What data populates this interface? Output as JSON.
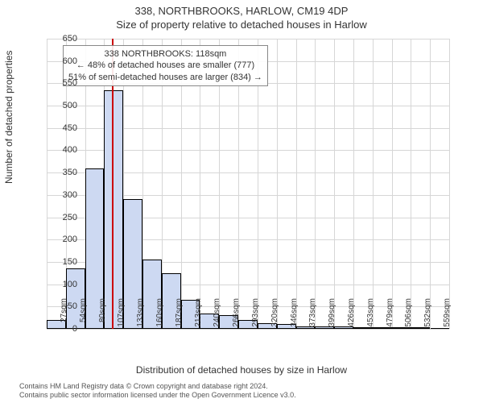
{
  "title": {
    "line1": "338, NORTHBROOKS, HARLOW, CM19 4DP",
    "line2": "Size of property relative to detached houses in Harlow"
  },
  "chart": {
    "type": "histogram",
    "y_axis": {
      "label": "Number of detached properties",
      "min": 0,
      "max": 650,
      "tick_step": 50,
      "ticks": [
        0,
        50,
        100,
        150,
        200,
        250,
        300,
        350,
        400,
        450,
        500,
        550,
        600,
        650
      ],
      "grid_color": "#d0d0d0",
      "label_fontsize": 12
    },
    "x_axis": {
      "label": "Distribution of detached houses by size in Harlow",
      "ticks": [
        "27sqm",
        "54sqm",
        "80sqm",
        "107sqm",
        "133sqm",
        "160sqm",
        "187sqm",
        "213sqm",
        "240sqm",
        "266sqm",
        "293sqm",
        "320sqm",
        "346sqm",
        "373sqm",
        "399sqm",
        "426sqm",
        "453sqm",
        "479sqm",
        "506sqm",
        "532sqm",
        "559sqm"
      ],
      "label_fontsize": 12
    },
    "bars": {
      "values": [
        20,
        135,
        360,
        535,
        290,
        155,
        125,
        65,
        35,
        30,
        20,
        12,
        10,
        6,
        5,
        5,
        4,
        4,
        3,
        2,
        0
      ],
      "fill_color": "#cdd9f2",
      "border_color": "#000000",
      "bar_width_fraction": 1.0
    },
    "marker": {
      "position_index": 3.4,
      "color": "#cc0000",
      "width": 2
    },
    "annotation": {
      "lines": [
        "338 NORTHBROOKS: 118sqm",
        "← 48% of detached houses are smaller (777)",
        "51% of semi-detached houses are larger (834) →"
      ],
      "border_color": "#888888",
      "background": "#ffffff",
      "fontsize": 11
    },
    "background_color": "#ffffff",
    "grid_color": "#d6d6d6"
  },
  "footer": {
    "line1": "Contains HM Land Registry data © Crown copyright and database right 2024.",
    "line2": "Contains public sector information licensed under the Open Government Licence v3.0."
  }
}
